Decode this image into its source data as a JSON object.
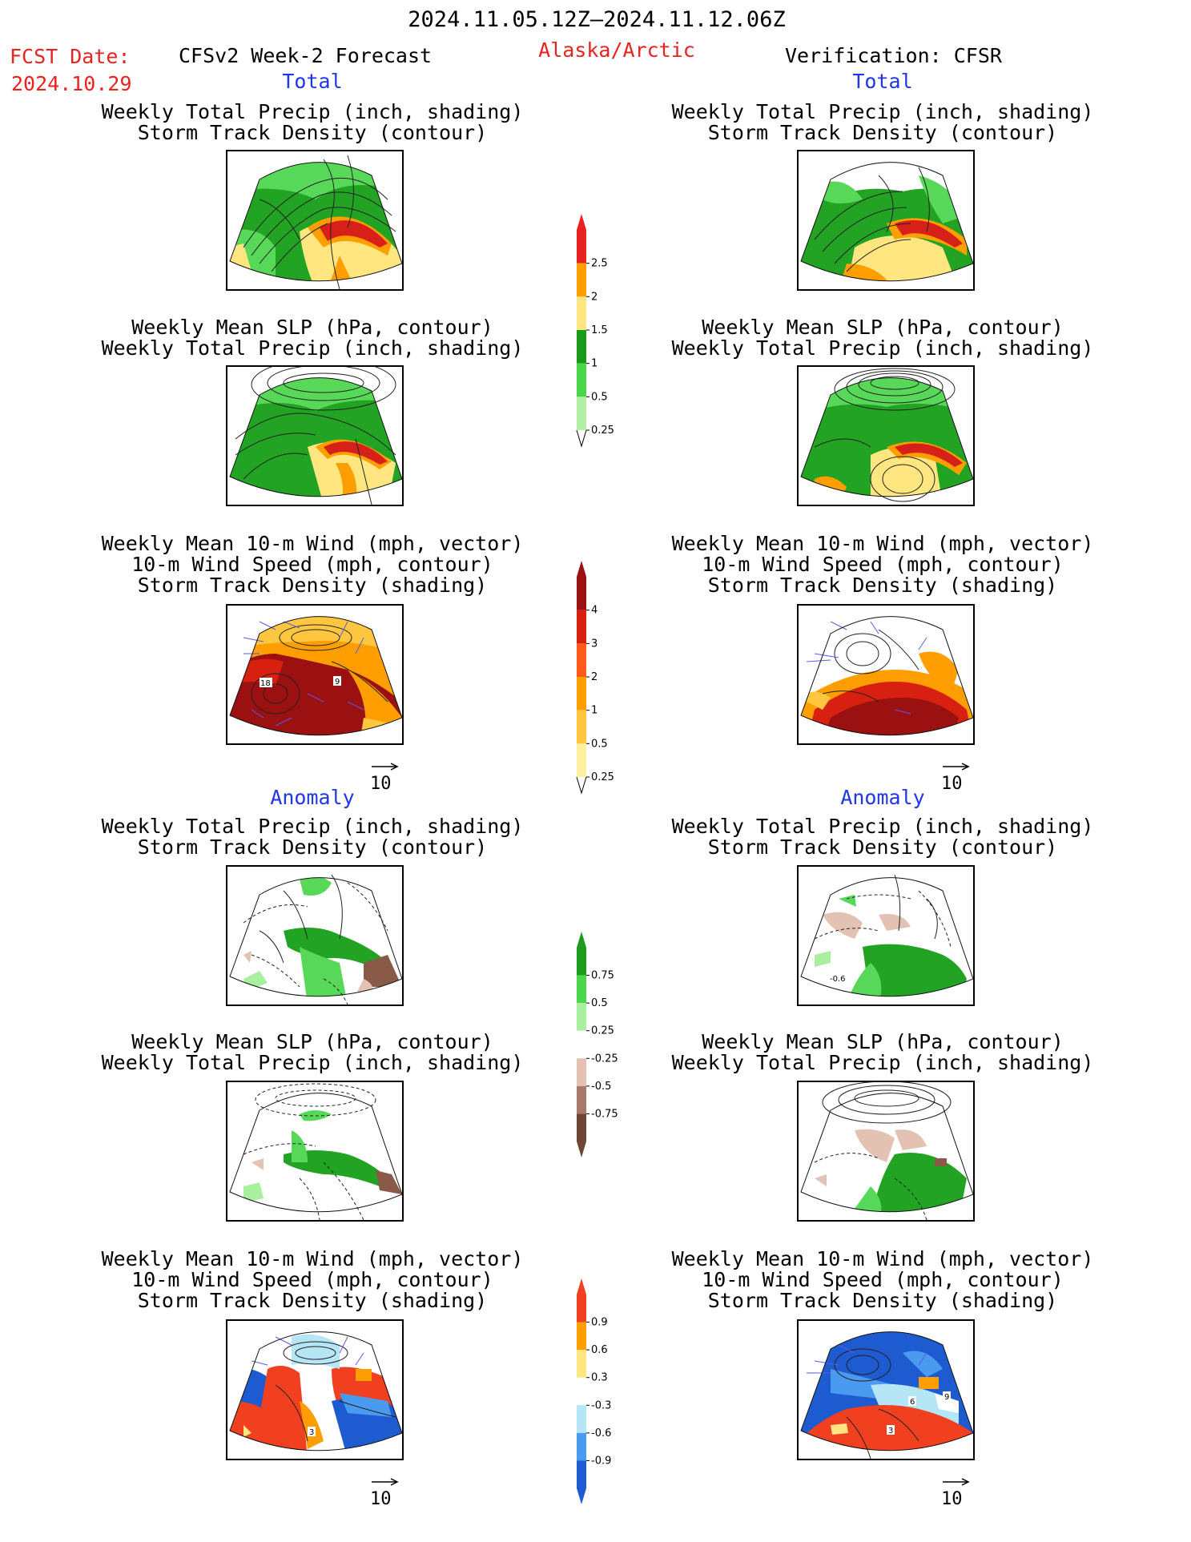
{
  "header": {
    "period": "2024.11.05.12Z–2024.11.12.06Z",
    "fcst_label": "FCST Date:",
    "fcst_date": "2024.10.29",
    "model_label": "CFSv2 Week-2 Forecast",
    "region": "Alaska/Arctic",
    "verification_label": "Verification: CFSR"
  },
  "sections": {
    "total": "Total",
    "anomaly": "Anomaly"
  },
  "panels": {
    "precip_storm": [
      "Weekly Total Precip (inch, shading)",
      "Storm Track Density (contour)"
    ],
    "slp_precip": [
      "Weekly Mean SLP (hPa, contour)",
      "Weekly Total Precip (inch, shading)"
    ],
    "wind_storm": [
      "Weekly Mean 10-m Wind (mph, vector)",
      "10-m Wind Speed (mph, contour)",
      "Storm Track Density (shading)"
    ]
  },
  "vector_reference": "10",
  "map_labels": {
    "fcst_total_wind_1": "18",
    "fcst_total_wind_2": "9",
    "cfsr_anom_precip": "-0.6",
    "fcst_anom_wind": "3",
    "cfsr_anom_wind_1": "3",
    "cfsr_anom_wind_2": "6",
    "cfsr_anom_wind_3": "9"
  },
  "colorbars": {
    "precip_total": {
      "labels": [
        "2.5",
        "2",
        "1.5",
        "1",
        "0.5",
        "0.25"
      ],
      "colors": [
        "#e8231f",
        "#ff9e00",
        "#ffe680",
        "#1a9a1a",
        "#4cd64c",
        "#b2f0a8"
      ]
    },
    "storm_total": {
      "labels": [
        "4",
        "3",
        "2",
        "1",
        "0.5",
        "0.25"
      ],
      "colors": [
        "#9b1010",
        "#d82010",
        "#ff5a1a",
        "#ff9e00",
        "#ffc640",
        "#fff0a0"
      ]
    },
    "precip_anomaly": {
      "labels": [
        "0.75",
        "0.5",
        "0.25",
        "-0.25",
        "-0.5",
        "-0.75"
      ],
      "colors": [
        "#1e9a1e",
        "#4cd64c",
        "#a8f0a0",
        "#ffffff",
        "#e3c2b3",
        "#a87868",
        "#6e4636"
      ]
    },
    "storm_anomaly": {
      "labels": [
        "0.9",
        "0.6",
        "0.3",
        "-0.3",
        "-0.6",
        "-0.9"
      ],
      "colors": [
        "#f04020",
        "#ff9e00",
        "#ffe680",
        "#ffffff",
        "#b4e6f6",
        "#4a9af0",
        "#1e5ad0"
      ]
    }
  },
  "colors": {
    "green": "#23a323",
    "light_green": "#58d858",
    "pale_green": "#a8efa0",
    "red": "#d8201a",
    "orange": "#ff9e00",
    "yellow": "#ffe680",
    "dark_red": "#9b1010",
    "brown": "#8a5a48",
    "tan": "#e3c2b3",
    "blue": "#1e5ad0",
    "light_blue": "#b4e6f6",
    "vector": "#5a5ae8"
  }
}
